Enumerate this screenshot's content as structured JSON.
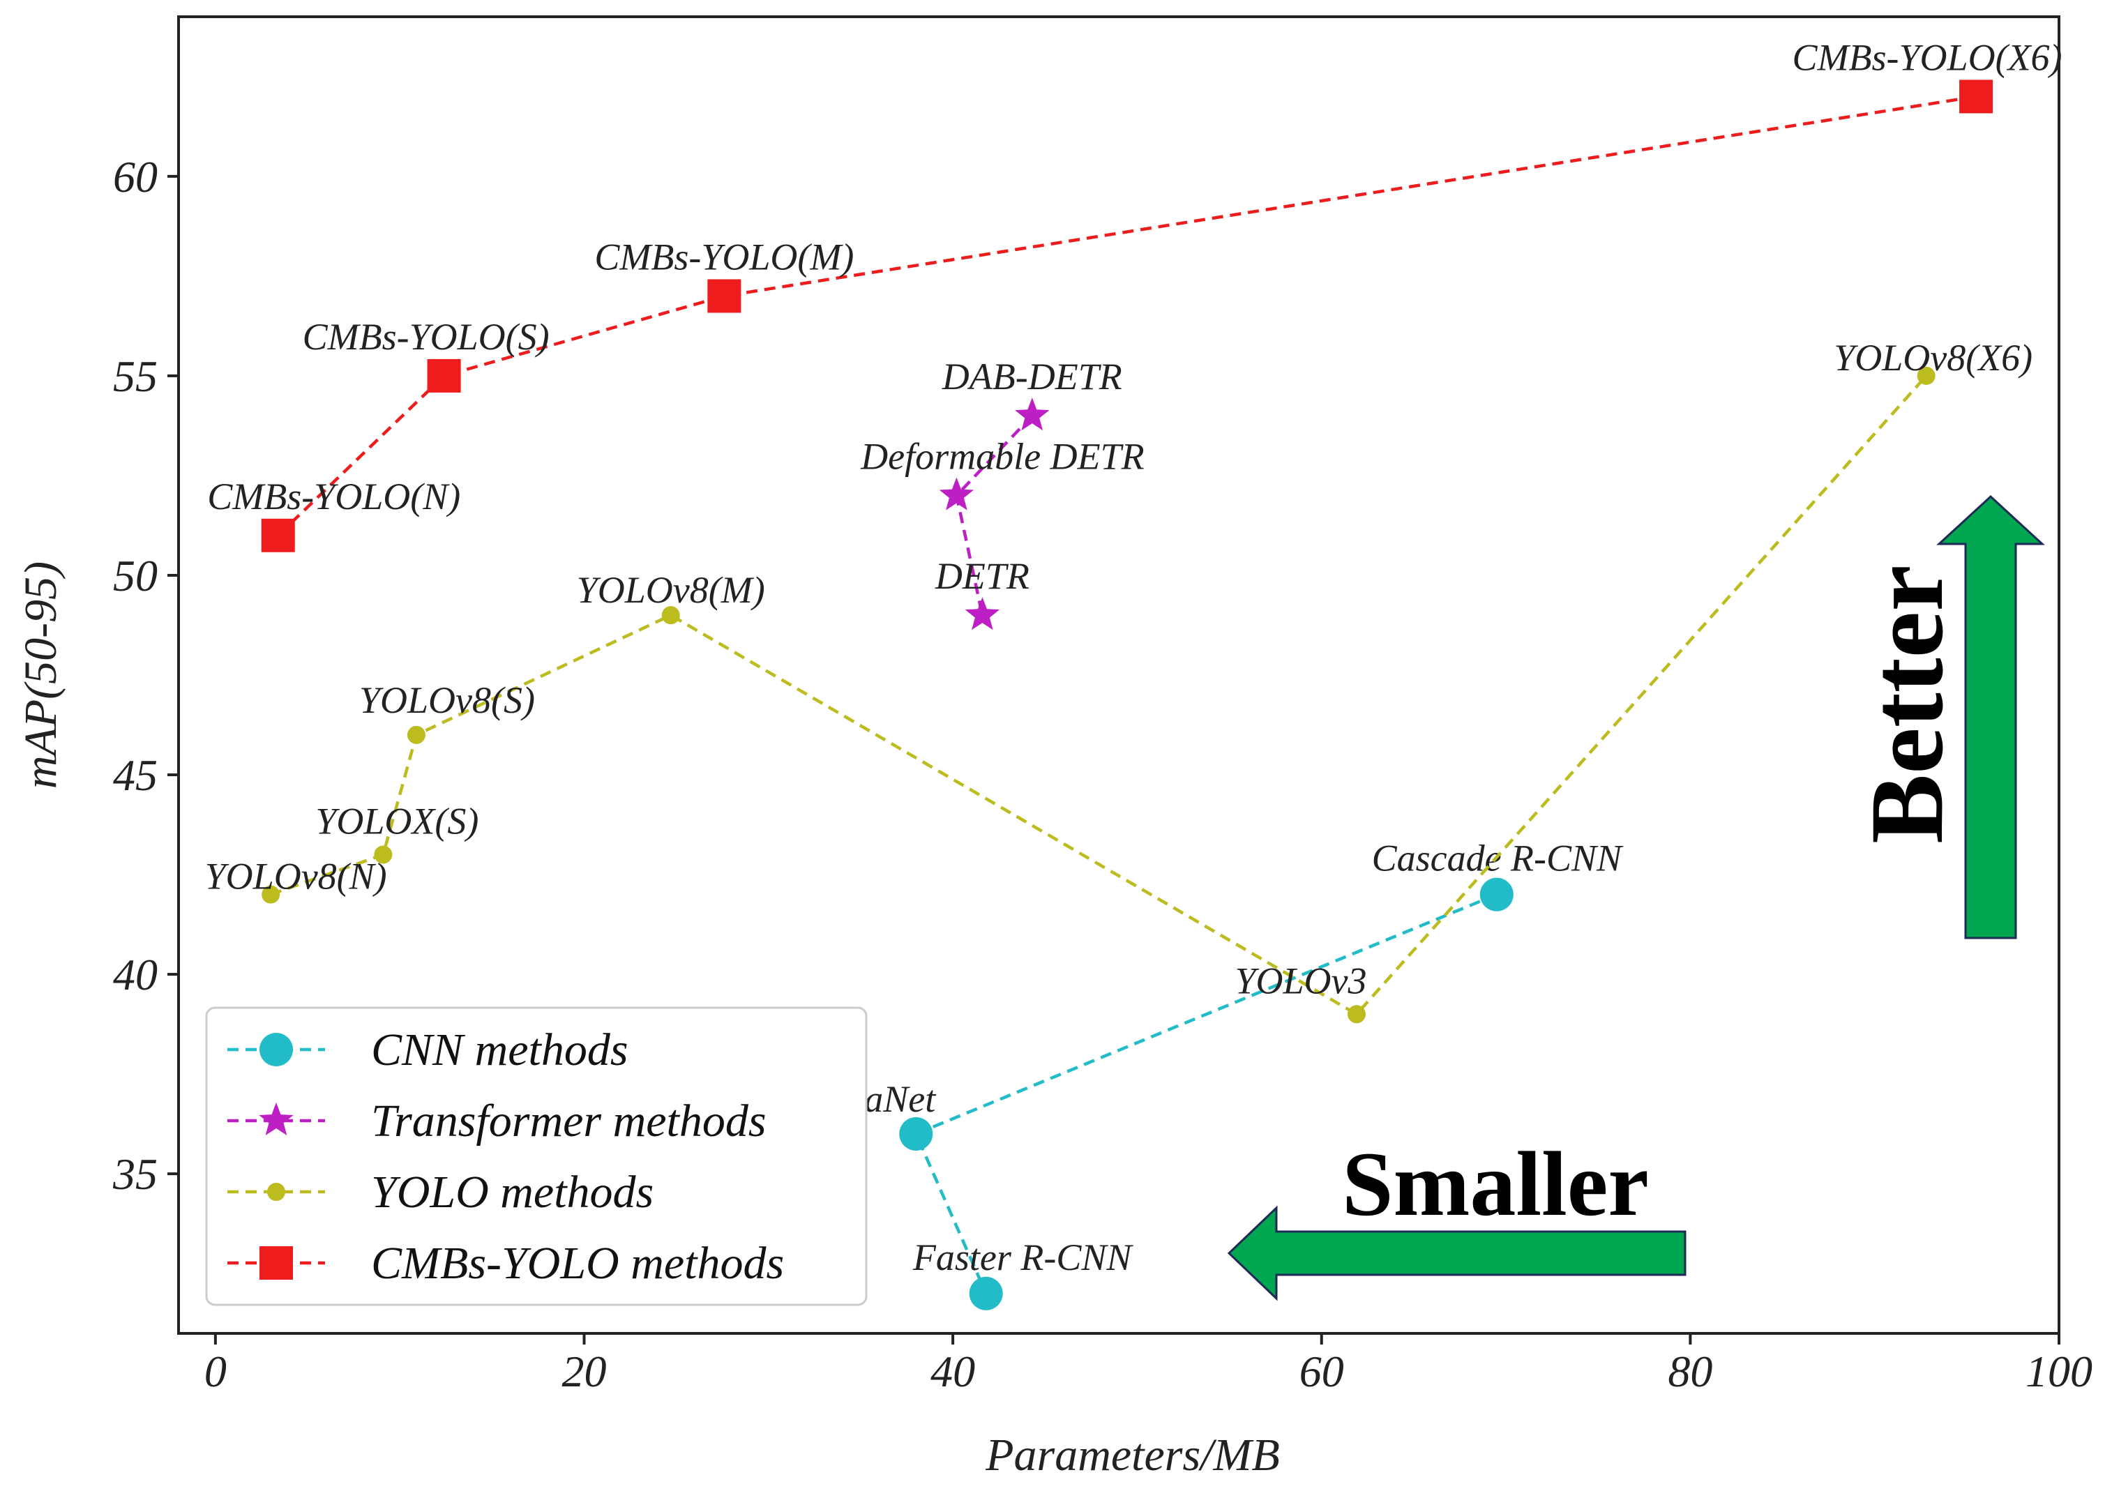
{
  "chart_data": {
    "type": "line",
    "xlabel": "Parameters/MB",
    "ylabel": "mAP(50-95)",
    "xlim": [
      -2,
      100
    ],
    "ylim": [
      31,
      64
    ],
    "xticks": [
      0,
      20,
      40,
      60,
      80,
      100
    ],
    "yticks": [
      35,
      40,
      45,
      50,
      55,
      60
    ],
    "grid": false,
    "legend_position": "bottom-left",
    "series": [
      {
        "name": "CNN methods",
        "color": "#22bcc8",
        "marker": "circle",
        "points": [
          {
            "x": 69.5,
            "y": 42,
            "label": "Cascade R-CNN"
          },
          {
            "x": 38,
            "y": 36,
            "label": "RetinaNet"
          },
          {
            "x": 41.8,
            "y": 32,
            "label": "Faster R-CNN"
          }
        ]
      },
      {
        "name": "Transformer methods",
        "color": "#bd1fc4",
        "marker": "star",
        "points": [
          {
            "x": 44.3,
            "y": 54,
            "label": "DAB-DETR"
          },
          {
            "x": 40.2,
            "y": 52,
            "label": "Deformable DETR"
          },
          {
            "x": 41.6,
            "y": 49,
            "label": "DETR"
          }
        ]
      },
      {
        "name": "YOLO methods",
        "color": "#bcbc1e",
        "marker": "dot",
        "points": [
          {
            "x": 3,
            "y": 42,
            "label": "YOLOv8(N)"
          },
          {
            "x": 9.1,
            "y": 43,
            "label": "YOLOX(S)"
          },
          {
            "x": 10.9,
            "y": 46,
            "label": "YOLOv8(S)"
          },
          {
            "x": 24.7,
            "y": 49,
            "label": "YOLOv8(M)"
          },
          {
            "x": 61.9,
            "y": 39,
            "label": "YOLOv3"
          },
          {
            "x": 92.8,
            "y": 55,
            "label": "YOLOv8(X6)"
          }
        ]
      },
      {
        "name": "CMBs-YOLO methods",
        "color": "#ee1c1c",
        "marker": "square",
        "points": [
          {
            "x": 3.4,
            "y": 51,
            "label": "CMBs-YOLO(N)"
          },
          {
            "x": 12.4,
            "y": 55,
            "label": "CMBs-YOLO(S)"
          },
          {
            "x": 27.6,
            "y": 57,
            "label": "CMBs-YOLO(M)"
          },
          {
            "x": 95.5,
            "y": 62,
            "label": "CMBs-YOLO(X6)"
          }
        ]
      }
    ],
    "annotations": [
      {
        "text": "Better",
        "arrow": "up",
        "color": "#00a650"
      },
      {
        "text": "Smaller",
        "arrow": "left",
        "color": "#00a650"
      }
    ]
  }
}
